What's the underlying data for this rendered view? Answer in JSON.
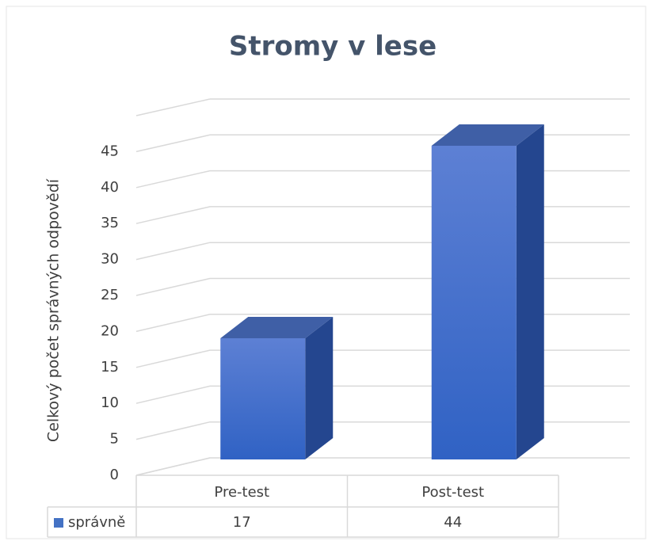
{
  "chart_data": {
    "type": "bar3d",
    "title": "Stromy v lese",
    "y_label": "Celkový počet správných odpovědí",
    "categories": [
      "Pre-test",
      "Post-test"
    ],
    "series": [
      {
        "name": "správně",
        "color": "#4472c4",
        "values": [
          17,
          44
        ]
      }
    ],
    "ylim": [
      0,
      50
    ],
    "yticks": [
      0,
      5,
      10,
      15,
      20,
      25,
      30,
      35,
      40,
      45
    ],
    "grid": true,
    "legend": "bottom",
    "data_table": true
  }
}
